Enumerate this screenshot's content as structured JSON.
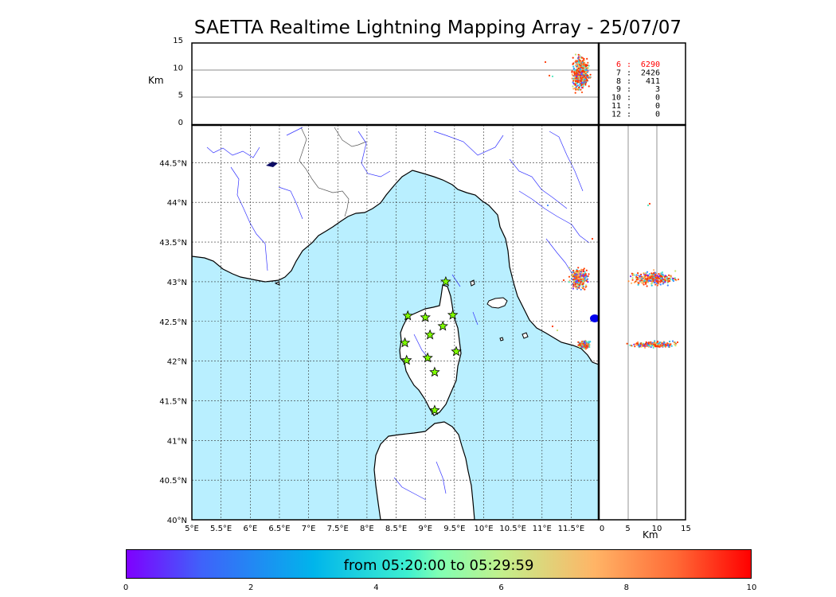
{
  "title": "SAETTA Realtime Lightning Mapping Array - 25/07/07",
  "height_unit": "Km",
  "alt_ticks": [
    "15",
    "10",
    "5",
    "0"
  ],
  "alt_ticks_x": [
    "0",
    "5",
    "10",
    "15"
  ],
  "lat_ticks": [
    "44.5°N",
    "44°N",
    "43.5°N",
    "43°N",
    "42.5°N",
    "42°N",
    "41.5°N",
    "41°N",
    "40.5°N",
    "40°N"
  ],
  "lon_ticks": [
    "5°E",
    "5.5°E",
    "6°E",
    "6.5°E",
    "7°E",
    "7.5°E",
    "8°E",
    "8.5°E",
    "9°E",
    "9.5°E",
    "10°E",
    "10.5°E",
    "11°E",
    "11.5°E"
  ],
  "station_counts": [
    {
      "stations": "6",
      "count": "6290",
      "color": "#ff0000"
    },
    {
      "stations": "7",
      "count": "2426",
      "color": "#000000"
    },
    {
      "stations": "8",
      "count": "411",
      "color": "#000000"
    },
    {
      "stations": "9",
      "count": "3",
      "color": "#000000"
    },
    {
      "stations": "10",
      "count": "0",
      "color": "#000000"
    },
    {
      "stations": "11",
      "count": "0",
      "color": "#000000"
    },
    {
      "stations": "12",
      "count": "0",
      "color": "#000000"
    }
  ],
  "colorbar": {
    "label": "from 05:20:00 to 05:29:59",
    "ticks": [
      "0",
      "2",
      "4",
      "6",
      "8",
      "10"
    ],
    "colormap": "rainbow"
  },
  "sensor_stations": [
    {
      "lon": 9.35,
      "lat": 43.0
    },
    {
      "lon": 8.7,
      "lat": 42.57
    },
    {
      "lon": 9.0,
      "lat": 42.55
    },
    {
      "lon": 9.47,
      "lat": 42.58
    },
    {
      "lon": 9.3,
      "lat": 42.44
    },
    {
      "lon": 9.08,
      "lat": 42.33
    },
    {
      "lon": 8.65,
      "lat": 42.23
    },
    {
      "lon": 9.53,
      "lat": 42.12
    },
    {
      "lon": 9.04,
      "lat": 42.04
    },
    {
      "lon": 8.68,
      "lat": 42.01
    },
    {
      "lon": 9.16,
      "lat": 41.86
    },
    {
      "lon": 9.16,
      "lat": 41.38
    }
  ],
  "lightning_clusters": [
    {
      "lon": 11.55,
      "lat": 43.08,
      "alt_km": 10,
      "time": 8.5
    },
    {
      "lon": 11.75,
      "lat": 42.26,
      "alt_km": 10,
      "time": 9.5
    }
  ],
  "colors": {
    "sea": "#b9efff",
    "land": "#ffffff",
    "rivers": "#3333ff",
    "station_fill": "#7fff00",
    "dense_strike": "#ff3300"
  }
}
